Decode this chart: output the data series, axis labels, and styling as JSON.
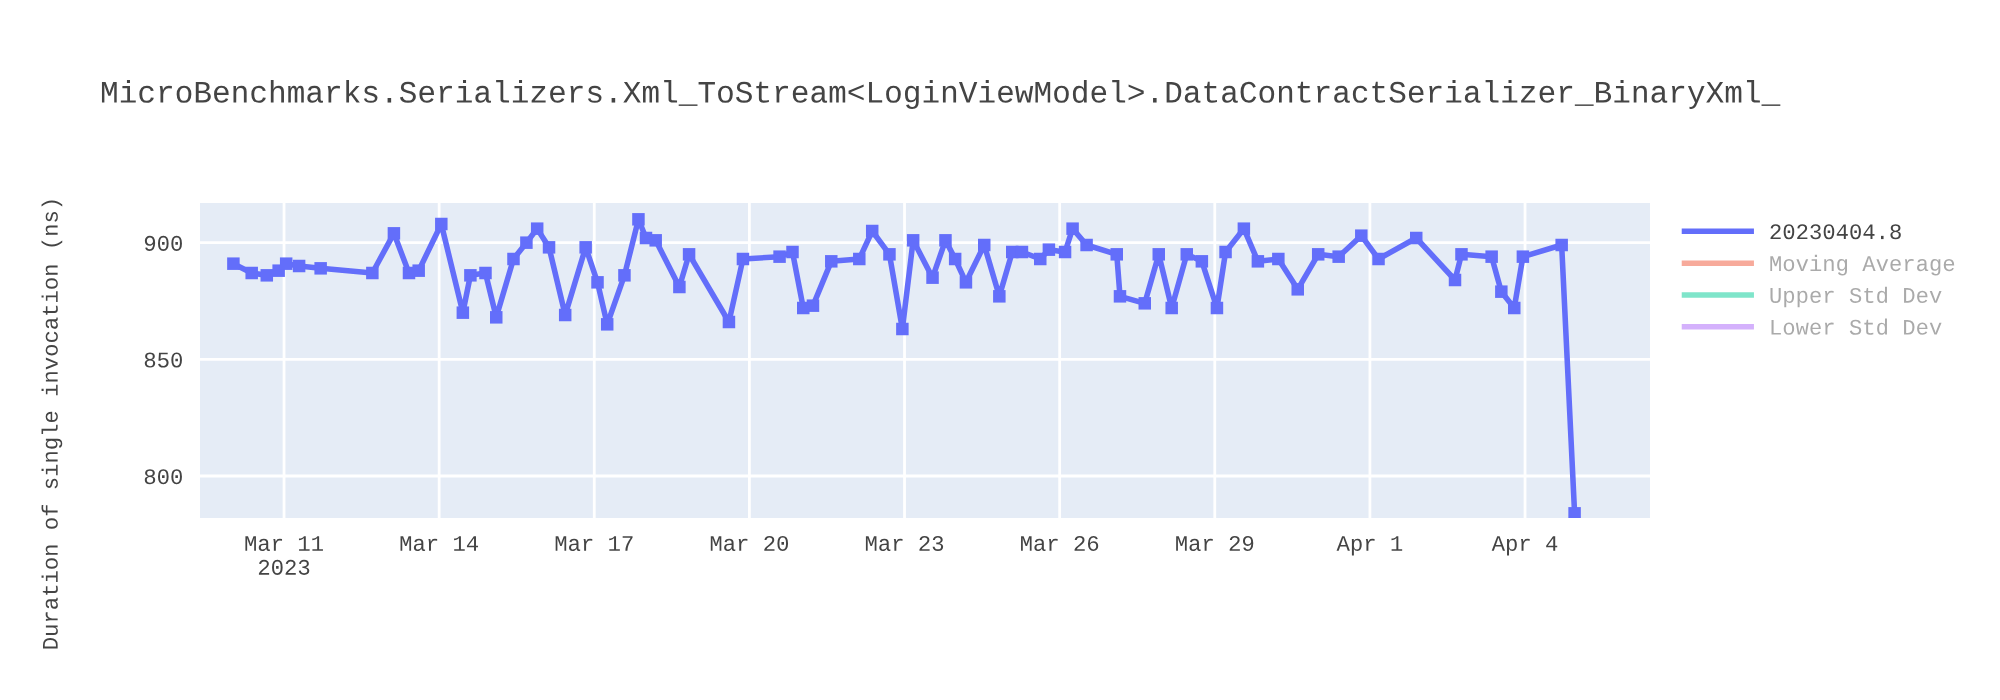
{
  "chart_data": {
    "type": "line",
    "title": "MicroBenchmarks.Serializers.Xml_ToStream<LoginViewModel>.DataContractSerializer_BinaryXml_",
    "ylabel": "Duration of single invocation (ns)",
    "x": [
      "2023-03-10T00:30",
      "2023-03-10T09:00",
      "2023-03-10T16:00",
      "2023-03-10T21:30",
      "2023-03-11T01:00",
      "2023-03-11T07:00",
      "2023-03-11T17:00",
      "2023-03-12T17:00",
      "2023-03-13T03:00",
      "2023-03-13T10:00",
      "2023-03-13T14:30",
      "2023-03-14T01:00",
      "2023-03-14T11:00",
      "2023-03-14T14:30",
      "2023-03-14T21:30",
      "2023-03-15T02:30",
      "2023-03-15T10:30",
      "2023-03-15T16:30",
      "2023-03-15T21:30",
      "2023-03-16T03:00",
      "2023-03-16T10:30",
      "2023-03-16T20:00",
      "2023-03-17T01:30",
      "2023-03-17T06:00",
      "2023-03-17T14:00",
      "2023-03-17T20:30",
      "2023-03-18T00:00",
      "2023-03-18T04:30",
      "2023-03-18T15:30",
      "2023-03-18T20:00",
      "2023-03-19T14:30",
      "2023-03-19T21:00",
      "2023-03-20T14:00",
      "2023-03-20T20:00",
      "2023-03-21T01:00",
      "2023-03-21T05:30",
      "2023-03-21T14:00",
      "2023-03-22T03:00",
      "2023-03-22T09:00",
      "2023-03-22T17:00",
      "2023-03-22T23:00",
      "2023-03-23T04:00",
      "2023-03-23T13:00",
      "2023-03-23T19:00",
      "2023-03-23T23:30",
      "2023-03-24T04:30",
      "2023-03-24T13:00",
      "2023-03-24T20:00",
      "2023-03-25T02:00",
      "2023-03-25T06:30",
      "2023-03-25T15:00",
      "2023-03-25T19:00",
      "2023-03-26T02:30",
      "2023-03-26T06:00",
      "2023-03-26T12:30",
      "2023-03-27T02:30",
      "2023-03-27T04:00",
      "2023-03-27T15:30",
      "2023-03-27T22:00",
      "2023-03-28T04:00",
      "2023-03-28T11:00",
      "2023-03-28T18:00",
      "2023-03-29T01:00",
      "2023-03-29T05:00",
      "2023-03-29T13:30",
      "2023-03-29T20:00",
      "2023-03-30T05:30",
      "2023-03-30T14:30",
      "2023-03-31T00:00",
      "2023-03-31T09:30",
      "2023-03-31T20:00",
      "2023-04-01T04:00",
      "2023-04-01T21:30",
      "2023-04-02T15:30",
      "2023-04-02T18:30",
      "2023-04-03T08:30",
      "2023-04-03T13:00",
      "2023-04-03T19:00",
      "2023-04-03T23:00",
      "2023-04-04T17:00",
      "2023-04-04T23:00"
    ],
    "series": [
      {
        "name": "20230404.8",
        "color": "#636efa",
        "values": [
          891,
          887,
          886,
          888,
          891,
          890,
          889,
          887,
          904,
          887,
          888,
          908,
          870,
          886,
          887,
          868,
          893,
          900,
          906,
          898,
          869,
          898,
          883,
          865,
          886,
          910,
          902,
          901,
          881,
          895,
          866,
          893,
          894,
          896,
          872,
          873,
          892,
          893,
          905,
          895,
          863,
          901,
          885,
          901,
          893,
          883,
          899,
          877,
          896,
          896,
          893,
          897,
          896,
          906,
          899,
          895,
          877,
          874,
          895,
          872,
          895,
          892,
          872,
          896,
          906,
          892,
          893,
          880,
          895,
          894,
          903,
          893,
          902,
          884,
          895,
          894,
          879,
          872,
          894,
          899,
          784
        ]
      },
      {
        "name": "Moving Average",
        "color": "#f7aa9b",
        "values": [
          null,
          null,
          null,
          null,
          null,
          null,
          null,
          null,
          null,
          null,
          null,
          null,
          null,
          null,
          null,
          null,
          null,
          null,
          null,
          null,
          null,
          null,
          null,
          null,
          null,
          null,
          null,
          null,
          null,
          null,
          null,
          null,
          null,
          null,
          null,
          null,
          null,
          null,
          null,
          null,
          null,
          null,
          null,
          null,
          null,
          null,
          null,
          null,
          null,
          null,
          null,
          null,
          null,
          null,
          null,
          null,
          null,
          null,
          null,
          null,
          null,
          null,
          null,
          null,
          null,
          null,
          null,
          null,
          null,
          null,
          null,
          null,
          null,
          null,
          null,
          null,
          null,
          null,
          null,
          null,
          null
        ]
      },
      {
        "name": "Upper Std Dev",
        "color": "#7fe5ca",
        "values": [
          null,
          null,
          null,
          null,
          null,
          null,
          null,
          null,
          null,
          null,
          null,
          null,
          null,
          null,
          null,
          null,
          null,
          null,
          null,
          null,
          null,
          null,
          null,
          null,
          null,
          null,
          null,
          null,
          null,
          null,
          null,
          null,
          null,
          null,
          null,
          null,
          null,
          null,
          null,
          null,
          null,
          null,
          null,
          null,
          null,
          null,
          null,
          null,
          null,
          null,
          null,
          null,
          null,
          null,
          null,
          null,
          null,
          null,
          null,
          null,
          null,
          null,
          null,
          null,
          null,
          null,
          null,
          null,
          null,
          null,
          null,
          null,
          null,
          null,
          null,
          null,
          null,
          null,
          null,
          null,
          null
        ]
      },
      {
        "name": "Lower Std Dev",
        "color": "#d4b1fc",
        "values": [
          null,
          null,
          null,
          null,
          null,
          null,
          null,
          null,
          null,
          null,
          null,
          null,
          null,
          null,
          null,
          null,
          null,
          null,
          null,
          null,
          null,
          null,
          null,
          null,
          null,
          null,
          null,
          null,
          null,
          null,
          null,
          null,
          null,
          null,
          null,
          null,
          null,
          null,
          null,
          null,
          null,
          null,
          null,
          null,
          null,
          null,
          null,
          null,
          null,
          null,
          null,
          null,
          null,
          null,
          null,
          null,
          null,
          null,
          null,
          null,
          null,
          null,
          null,
          null,
          null,
          null,
          null,
          null,
          null,
          null,
          null,
          null,
          null,
          null,
          null,
          null,
          null,
          null,
          null,
          null,
          null
        ]
      }
    ],
    "xlim": [
      "2023-03-09T09:00",
      "2023-04-06T10:00"
    ],
    "xticks": [
      {
        "value": "2023-03-11",
        "label": "Mar 11\n2023"
      },
      {
        "value": "2023-03-14",
        "label": "Mar 14"
      },
      {
        "value": "2023-03-17",
        "label": "Mar 17"
      },
      {
        "value": "2023-03-20",
        "label": "Mar 20"
      },
      {
        "value": "2023-03-23",
        "label": "Mar 23"
      },
      {
        "value": "2023-03-26",
        "label": "Mar 26"
      },
      {
        "value": "2023-03-29",
        "label": "Mar 29"
      },
      {
        "value": "2023-04-01",
        "label": "Apr 1"
      },
      {
        "value": "2023-04-04",
        "label": "Apr 4"
      }
    ],
    "ylim": [
      782,
      917
    ],
    "yticks": [
      800,
      850,
      900
    ],
    "grid": true,
    "legend": "top right",
    "marker": "square",
    "line_style": "solid"
  }
}
